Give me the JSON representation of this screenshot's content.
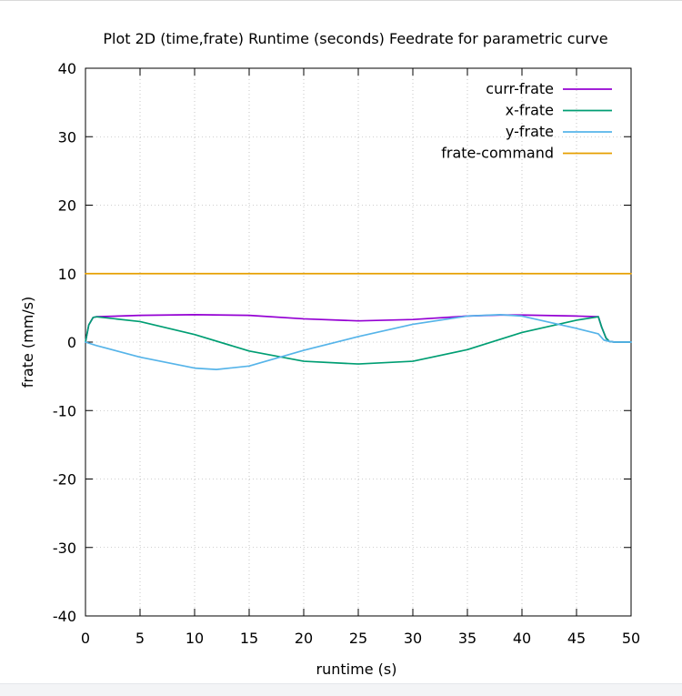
{
  "chart_data": {
    "type": "line",
    "title": "Plot 2D (time,frate) Runtime (seconds) Feedrate for parametric curve",
    "xlabel": "runtime (s)",
    "ylabel": "frate (mm/s)",
    "xlim": [
      0,
      50
    ],
    "ylim": [
      -40,
      40
    ],
    "xticks": [
      0,
      5,
      10,
      15,
      20,
      25,
      30,
      35,
      40,
      45,
      50
    ],
    "yticks": [
      -40,
      -30,
      -20,
      -10,
      0,
      10,
      20,
      30,
      40
    ],
    "xtick_labels": [
      "0",
      "5",
      "10",
      "15",
      "20",
      "25",
      "30",
      "35",
      "40",
      "45",
      "50"
    ],
    "ytick_labels": [
      "-40",
      "-30",
      "-20",
      "-10",
      "0",
      "10",
      "20",
      "30",
      "40"
    ],
    "grid": true,
    "legend_position": "top-right",
    "series": [
      {
        "name": "curr-frate",
        "color": "#9400d3",
        "x": [
          0,
          0.3,
          0.7,
          1.0,
          5,
          10,
          15,
          20,
          25,
          30,
          35,
          38,
          40,
          45,
          47,
          47.3,
          47.7,
          48,
          48.5,
          50
        ],
        "y": [
          0,
          2.5,
          3.6,
          3.7,
          3.9,
          4.0,
          3.9,
          3.4,
          3.1,
          3.3,
          3.8,
          3.95,
          3.95,
          3.8,
          3.7,
          2.2,
          0.6,
          0.1,
          0,
          0
        ]
      },
      {
        "name": "x-frate",
        "color": "#009e73",
        "x": [
          0,
          0.3,
          0.7,
          1.0,
          5,
          10,
          15,
          20,
          25,
          30,
          35,
          40,
          45,
          47,
          47.3,
          47.7,
          48,
          48.5,
          50
        ],
        "y": [
          0,
          2.5,
          3.6,
          3.7,
          3.0,
          1.1,
          -1.3,
          -2.8,
          -3.2,
          -2.8,
          -1.1,
          1.4,
          3.2,
          3.7,
          2.2,
          0.6,
          0.1,
          0,
          0
        ]
      },
      {
        "name": "y-frate",
        "color": "#56b4e9",
        "x": [
          0,
          1,
          5,
          10,
          12,
          15,
          20,
          25,
          30,
          35,
          38,
          40,
          45,
          47,
          47.5,
          48,
          48.5,
          50
        ],
        "y": [
          0,
          -0.5,
          -2.2,
          -3.8,
          -4.0,
          -3.5,
          -1.2,
          0.8,
          2.6,
          3.8,
          4.0,
          3.8,
          2.0,
          1.2,
          0.3,
          0.1,
          0,
          0
        ]
      },
      {
        "name": "frate-command",
        "color": "#e69f00",
        "x": [
          0,
          50
        ],
        "y": [
          10,
          10
        ]
      }
    ]
  }
}
